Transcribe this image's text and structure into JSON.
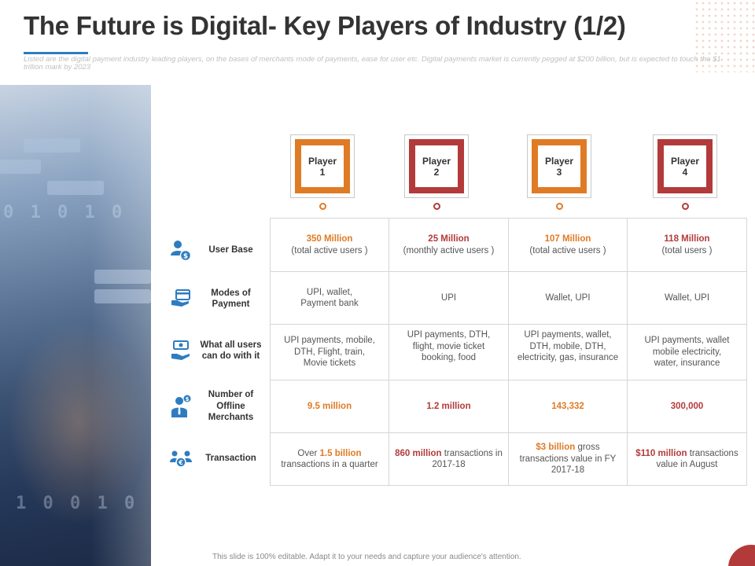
{
  "slide": {
    "title": "The Future is Digital- Key Players of Industry (1/2)",
    "subtitle": "Listed are the digital payment industry leading players, on the bases of merchants mode of payments, ease for user etc. Digital payments market is currently pegged at $200 billion, but is expected to touch the $1 trillion mark by 2023",
    "footer": "This slide is 100% editable.  Adapt it to your needs and capture your audience's attention.",
    "accent_orange": "#e07b25",
    "accent_red": "#b33a3a",
    "accent_blue": "#2e7cc0"
  },
  "players": [
    {
      "line1": "Player",
      "line2": "1",
      "color": "orange"
    },
    {
      "line1": "Player",
      "line2": "2",
      "color": "red"
    },
    {
      "line1": "Player",
      "line2": "3",
      "color": "orange"
    },
    {
      "line1": "Player",
      "line2": "4",
      "color": "red"
    }
  ],
  "rows": [
    {
      "label": "User Base",
      "icon": "user-money-icon"
    },
    {
      "label": "Modes of Payment",
      "icon": "card-in-hand-icon"
    },
    {
      "label": "What all users can do with it",
      "icon": "cash-in-hand-icon"
    },
    {
      "label": "Number of Offline Merchants",
      "icon": "businessman-dollar-icon"
    },
    {
      "label": "Transaction",
      "icon": "user-exchange-icon"
    }
  ],
  "cells": {
    "user_base": [
      {
        "value": "350 Million",
        "note": "(total active users )"
      },
      {
        "value": "25 Million",
        "note": "(monthly active users )"
      },
      {
        "value": "107 Million",
        "note": "(total active users )"
      },
      {
        "value": "118 Million",
        "note": "(total users )"
      }
    ],
    "modes": [
      {
        "line1": "UPI, wallet,",
        "line2": "Payment bank"
      },
      {
        "line1": "UPI"
      },
      {
        "line1": "Wallet, UPI"
      },
      {
        "line1": "Wallet, UPI"
      }
    ],
    "uses": [
      {
        "line1": "UPI payments, mobile,",
        "line2": "DTH, Flight, train,",
        "line3": "Movie tickets"
      },
      {
        "line1": "UPI payments, DTH,",
        "line2": "flight, movie ticket",
        "line3": "booking, food"
      },
      {
        "line1": "UPI payments, wallet,",
        "line2": "DTH, mobile, DTH,",
        "line3": "electricity, gas, insurance"
      },
      {
        "line1": "UPI payments, wallet",
        "line2": "mobile electricity,",
        "line3": "water, insurance"
      }
    ],
    "merchants": [
      "9.5 million",
      "1.2 million",
      "143,332",
      "300,000"
    ],
    "transactions": [
      {
        "pre": "Over ",
        "hl": "1.5 billion",
        "post": "transactions in a quarter"
      },
      {
        "hl": "860 million",
        "post": " transactions in 2017-18"
      },
      {
        "hl": "$3 billion",
        "post": " gross transactions value in FY 2017-18"
      },
      {
        "hl": "$110 million",
        "post": " transactions value in August"
      }
    ]
  }
}
